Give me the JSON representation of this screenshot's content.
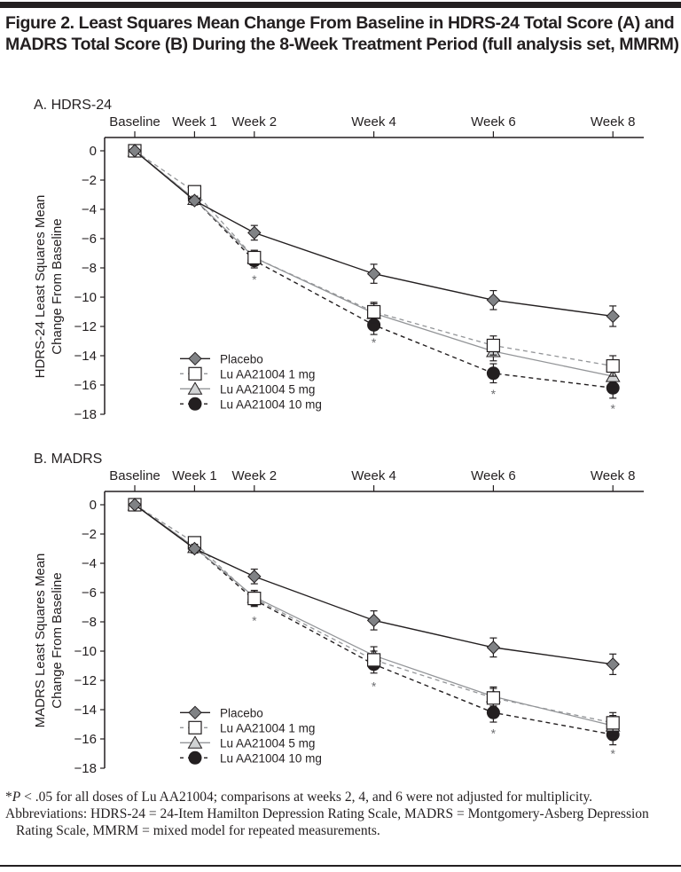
{
  "figure": {
    "title": "Figure 2. Least Squares Mean Change From Baseline in HDRS-24 Total Score (A) and MADRS Total Score (B) During the 8-Week Treatment Period (full analysis set, MMRM)",
    "footnote_star": "*",
    "footnote_p": "P",
    "footnote_text": " < .05 for all doses of Lu AA21004; comparisons at weeks 2, 4, and 6 were not adjusted for multiplicity.",
    "abbreviations": "Abbreviations: HDRS-24 = 24-Item Hamilton Depression Rating Scale, MADRS = Montgomery-Asberg Depression Rating Scale, MMRM = mixed model for repeated measurements."
  },
  "colors": {
    "text": "#231f20",
    "placebo_fill": "#808285",
    "dose1_line": "#939598",
    "dose5_line": "#939598",
    "dose5_fill": "#d1d3d4",
    "dose10_fill": "#231f20",
    "star": "#6d6e71"
  },
  "chart_data": [
    {
      "type": "line",
      "panel_label": "A. HDRS-24",
      "title": "",
      "xlabel": "",
      "ylabel": "HDRS-24 Least Squares Mean Change From Baseline",
      "ylabel_lines": [
        "HDRS-24 Least Squares Mean",
        "Change From Baseline"
      ],
      "categories": [
        "Baseline",
        "Week 1",
        "Week 2",
        "Week 4",
        "Week 6",
        "Week 8"
      ],
      "x_weeks": [
        0,
        1,
        2,
        4,
        6,
        8
      ],
      "x_axis_position": "top",
      "ylim": [
        -18,
        0
      ],
      "yticks": [
        0,
        -2,
        -4,
        -6,
        -8,
        -10,
        -12,
        -14,
        -16,
        -18
      ],
      "ytick_labels": [
        "0",
        "−2",
        "−4",
        "−6",
        "−8",
        "−10",
        "−12",
        "−14",
        "−16",
        "−18"
      ],
      "grid": false,
      "legend_position": "bottom-left",
      "series": [
        {
          "name": "Placebo",
          "marker": "diamond",
          "line": "solid-dark",
          "values": [
            0,
            -3.4,
            -5.6,
            -8.4,
            -10.2,
            -11.3
          ],
          "error": [
            0,
            0.3,
            0.5,
            0.65,
            0.65,
            0.7
          ]
        },
        {
          "name": "Lu AA21004 1 mg",
          "marker": "square",
          "line": "dashed-gray",
          "values": [
            0,
            -2.8,
            -7.3,
            -11.0,
            -13.3,
            -14.7
          ],
          "error": [
            0,
            0.3,
            0.5,
            0.65,
            0.65,
            0.7
          ]
        },
        {
          "name": "Lu AA21004 5 mg",
          "marker": "triangle",
          "line": "solid-gray",
          "values": [
            0,
            -3.3,
            -7.3,
            -11.1,
            -13.7,
            -15.4
          ],
          "error": [
            0,
            0.3,
            0.5,
            0.65,
            0.65,
            0.7
          ]
        },
        {
          "name": "Lu AA21004 10 mg",
          "marker": "circle",
          "line": "dashed-dark",
          "values": [
            0,
            -3.3,
            -7.5,
            -11.9,
            -15.2,
            -16.2
          ],
          "error": [
            0,
            0.3,
            0.5,
            0.65,
            0.65,
            0.7
          ]
        }
      ],
      "annotations": [
        {
          "category": "Week 2",
          "text": "*",
          "value": -8.8
        },
        {
          "category": "Week 4",
          "text": "*",
          "value": -13.1
        },
        {
          "category": "Week 6",
          "text": "*",
          "value": -16.6
        },
        {
          "category": "Week 8",
          "text": "*",
          "value": -17.6
        }
      ]
    },
    {
      "type": "line",
      "panel_label": "B. MADRS",
      "title": "",
      "xlabel": "",
      "ylabel": "MADRS Least Squares Mean Change From Baseline",
      "ylabel_lines": [
        "MADRS Least Squares Mean",
        "Change From Baseline"
      ],
      "categories": [
        "Baseline",
        "Week 1",
        "Week 2",
        "Week 4",
        "Week 6",
        "Week 8"
      ],
      "x_weeks": [
        0,
        1,
        2,
        4,
        6,
        8
      ],
      "x_axis_position": "top",
      "ylim": [
        -18,
        0
      ],
      "yticks": [
        0,
        -2,
        -4,
        -6,
        -8,
        -10,
        -12,
        -14,
        -16,
        -18
      ],
      "ytick_labels": [
        "0",
        "−2",
        "−4",
        "−6",
        "−8",
        "−10",
        "−12",
        "−14",
        "−16",
        "−18"
      ],
      "grid": false,
      "legend_position": "bottom-left",
      "series": [
        {
          "name": "Placebo",
          "marker": "diamond",
          "line": "solid-dark",
          "values": [
            0,
            -3.0,
            -4.9,
            -7.9,
            -9.75,
            -10.9
          ],
          "error": [
            0,
            0.3,
            0.5,
            0.65,
            0.65,
            0.7
          ]
        },
        {
          "name": "Lu AA21004 1 mg",
          "marker": "square",
          "line": "dashed-gray",
          "values": [
            0,
            -2.6,
            -6.4,
            -10.6,
            -13.2,
            -14.9
          ],
          "error": [
            0,
            0.3,
            0.45,
            0.6,
            0.65,
            0.7
          ]
        },
        {
          "name": "Lu AA21004 5 mg",
          "marker": "triangle",
          "line": "solid-gray",
          "values": [
            0,
            -2.9,
            -6.3,
            -10.3,
            -13.1,
            -15.1
          ],
          "error": [
            0,
            0.3,
            0.45,
            0.6,
            0.65,
            0.7
          ]
        },
        {
          "name": "Lu AA21004 10 mg",
          "marker": "circle",
          "line": "dashed-dark",
          "values": [
            0,
            -2.9,
            -6.5,
            -10.9,
            -14.2,
            -15.7
          ],
          "error": [
            0,
            0.3,
            0.45,
            0.6,
            0.65,
            0.7
          ]
        }
      ],
      "annotations": [
        {
          "category": "Week 2",
          "text": "*",
          "value": -7.9
        },
        {
          "category": "Week 4",
          "text": "*",
          "value": -12.4
        },
        {
          "category": "Week 6",
          "text": "*",
          "value": -15.6
        },
        {
          "category": "Week 8",
          "text": "*",
          "value": -17.0
        }
      ]
    }
  ]
}
